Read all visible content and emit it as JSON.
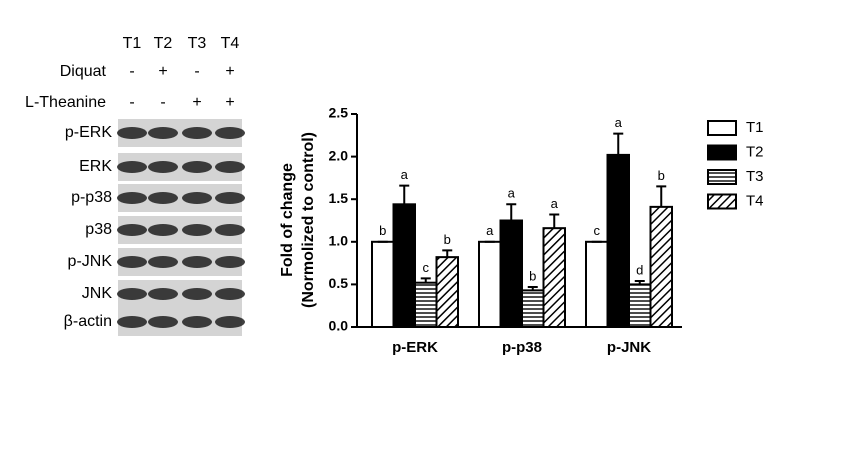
{
  "blot": {
    "lanes": [
      "T1",
      "T2",
      "T3",
      "T4"
    ],
    "treatments": [
      {
        "name": "Diquat",
        "signs": [
          "-",
          "+",
          "-",
          "+"
        ]
      },
      {
        "name": "L-Theanine",
        "signs": [
          "-",
          "-",
          "+",
          "+"
        ]
      }
    ],
    "rows": [
      "p-ERK",
      "ERK",
      "p-p38",
      "p38",
      "p-JNK",
      "JNK",
      "β-actin"
    ]
  },
  "chart_data": {
    "type": "bar",
    "ylabel": [
      "Fold of change",
      "(Normolized to control)"
    ],
    "categories": [
      "p-ERK",
      "p-p38",
      "p-JNK"
    ],
    "series": [
      {
        "name": "T1",
        "color": "#000000",
        "fill": "white",
        "values": [
          1.0,
          1.0,
          1.0
        ],
        "errors": [
          0,
          0,
          0
        ],
        "letters": [
          "b",
          "a",
          "c"
        ]
      },
      {
        "name": "T2",
        "color": "#000000",
        "fill": "solid",
        "values": [
          1.44,
          1.25,
          2.02
        ],
        "errors": [
          0.22,
          0.19,
          0.25
        ],
        "letters": [
          "a",
          "a",
          "a"
        ]
      },
      {
        "name": "T3",
        "color": "#000000",
        "fill": "horizontal-lines",
        "values": [
          0.52,
          0.43,
          0.5
        ],
        "errors": [
          0.05,
          0.04,
          0.04
        ],
        "letters": [
          "c",
          "b",
          "d"
        ]
      },
      {
        "name": "T4",
        "color": "#000000",
        "fill": "diagonal-lines",
        "values": [
          0.82,
          1.16,
          1.41
        ],
        "errors": [
          0.08,
          0.16,
          0.24
        ],
        "letters": [
          "b",
          "a",
          "b"
        ]
      }
    ],
    "ylim": [
      0,
      2.5
    ],
    "yticks": [
      {
        "value": 0,
        "label": "0.0"
      },
      0.5,
      {
        "value": 1,
        "label": "1.0"
      },
      1.5,
      {
        "value": 2,
        "label": "2.0"
      },
      2.5
    ],
    "legend": "right",
    "grid": false
  }
}
